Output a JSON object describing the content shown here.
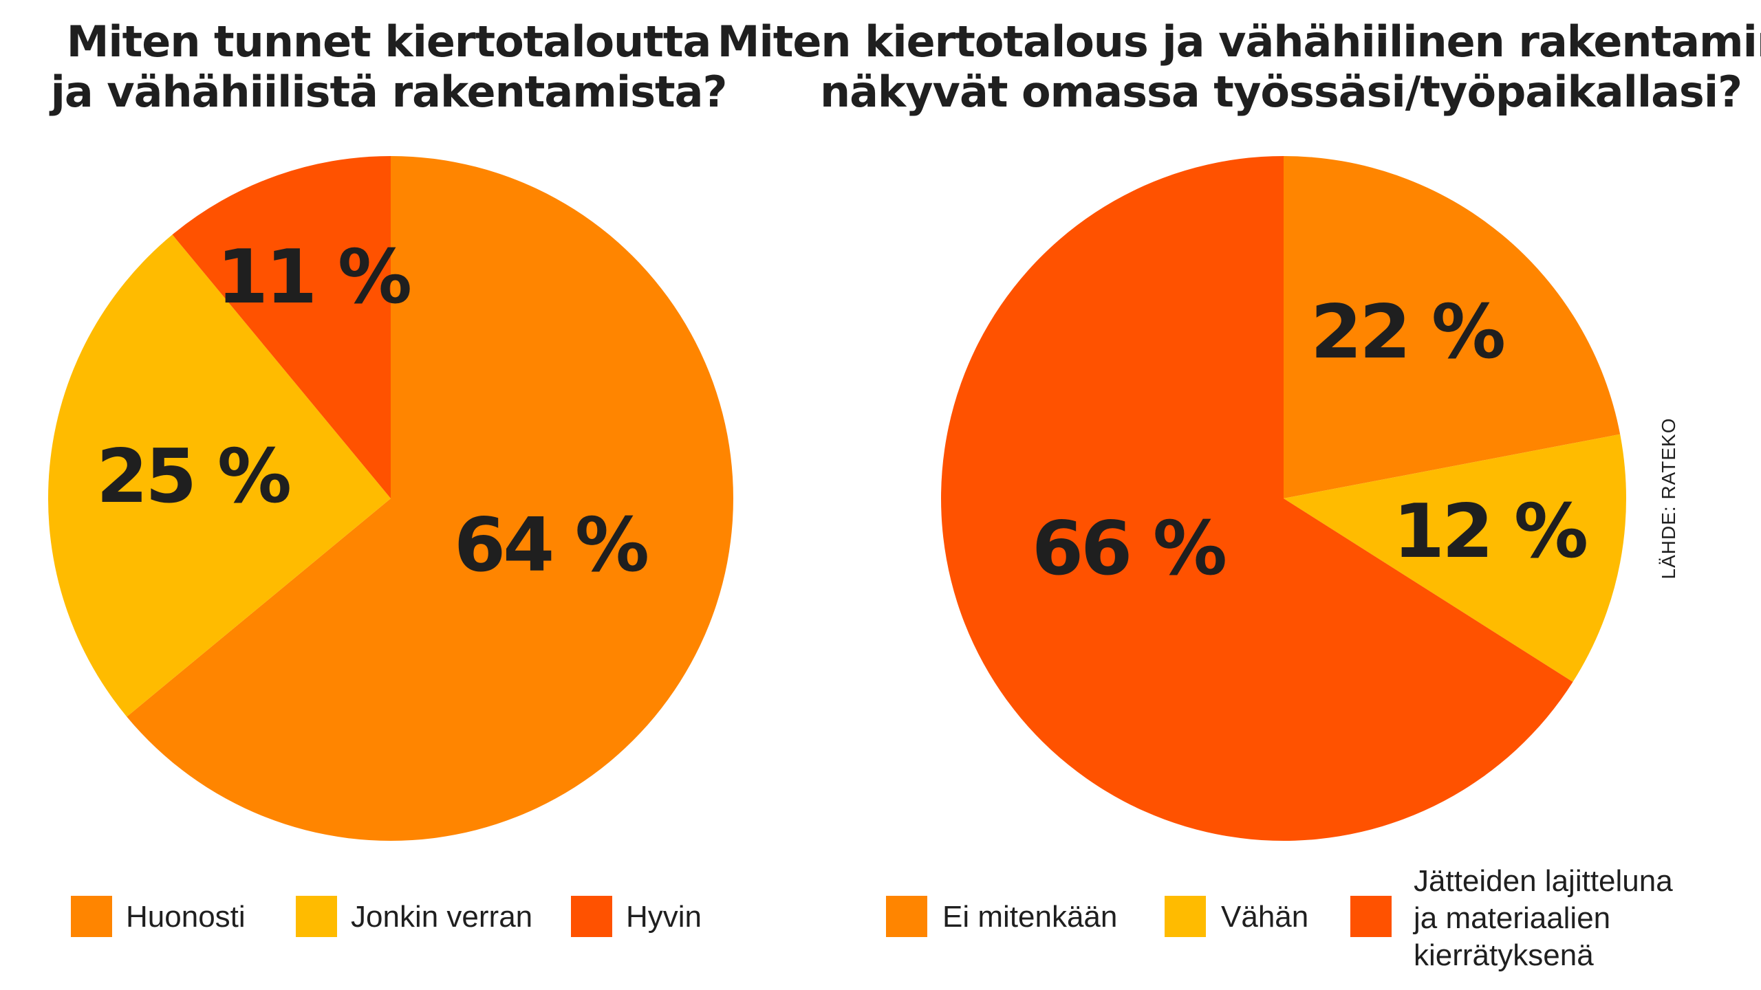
{
  "source": "LÄHDE: RATEKO",
  "chart_data": [
    {
      "type": "pie",
      "title": [
        "Miten tunnet kiertotaloutta",
        "ja vähähiilistä rakentamista?"
      ],
      "slices": [
        {
          "name": "Huonosti",
          "value": 64,
          "label": "64 %",
          "color": "#ff8500"
        },
        {
          "name": "Jonkin verran",
          "value": 25,
          "label": "25 %",
          "color": "#ffbb00"
        },
        {
          "name": "Hyvin",
          "value": 11,
          "label": "11 %",
          "color": "#ff5200"
        }
      ]
    },
    {
      "type": "pie",
      "title": [
        "Miten kiertotalous ja vähähiilinen rakentaminen",
        "näkyvät omassa työssäsi/työpaikallasi?"
      ],
      "slices": [
        {
          "name": "Ei mitenkään",
          "value": 22,
          "label": "22 %",
          "color": "#ff8500"
        },
        {
          "name": "Vähän",
          "value": 12,
          "label": "12 %",
          "color": "#ffbb00"
        },
        {
          "name": "Jätteiden lajitteluna ja materiaalien kierrätyksenä",
          "lines": [
            "Jätteiden lajitteluna",
            "ja materiaalien",
            "kierrätyksenä"
          ],
          "value": 66,
          "label": "66 %",
          "color": "#ff5200"
        }
      ]
    }
  ]
}
